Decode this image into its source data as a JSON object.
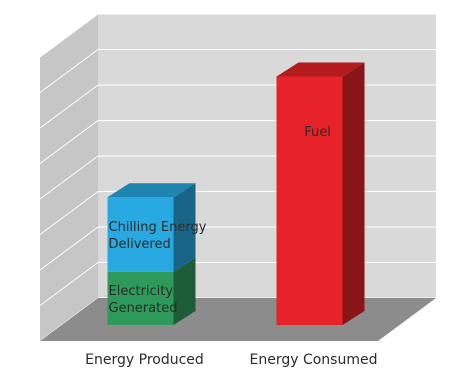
{
  "chart_data": {
    "type": "bar",
    "stacked": true,
    "three_d": true,
    "grid": true,
    "categories": [
      "Energy Produced",
      "Energy Consumed"
    ],
    "ylim": [
      0,
      8
    ],
    "series": [
      {
        "name": "Electricity Generated",
        "values": [
          1.5,
          0
        ],
        "color": "#2e9a5a",
        "label_lines": [
          "Electricity",
          "Generated"
        ]
      },
      {
        "name": "Chilling Energy Delivered",
        "values": [
          2.1,
          0
        ],
        "color": "#29a9e1",
        "label_lines": [
          "Chilling Energy",
          "Delivered"
        ]
      },
      {
        "name": "Fuel",
        "values": [
          0,
          7.0
        ],
        "color": "#e52328",
        "label_lines": [
          "Fuel"
        ]
      }
    ],
    "colors": {
      "wall": "#d9d9d9",
      "wall_side": "#c6c6c6",
      "floor": "#8c8c8c",
      "grid": "#ffffff"
    }
  }
}
